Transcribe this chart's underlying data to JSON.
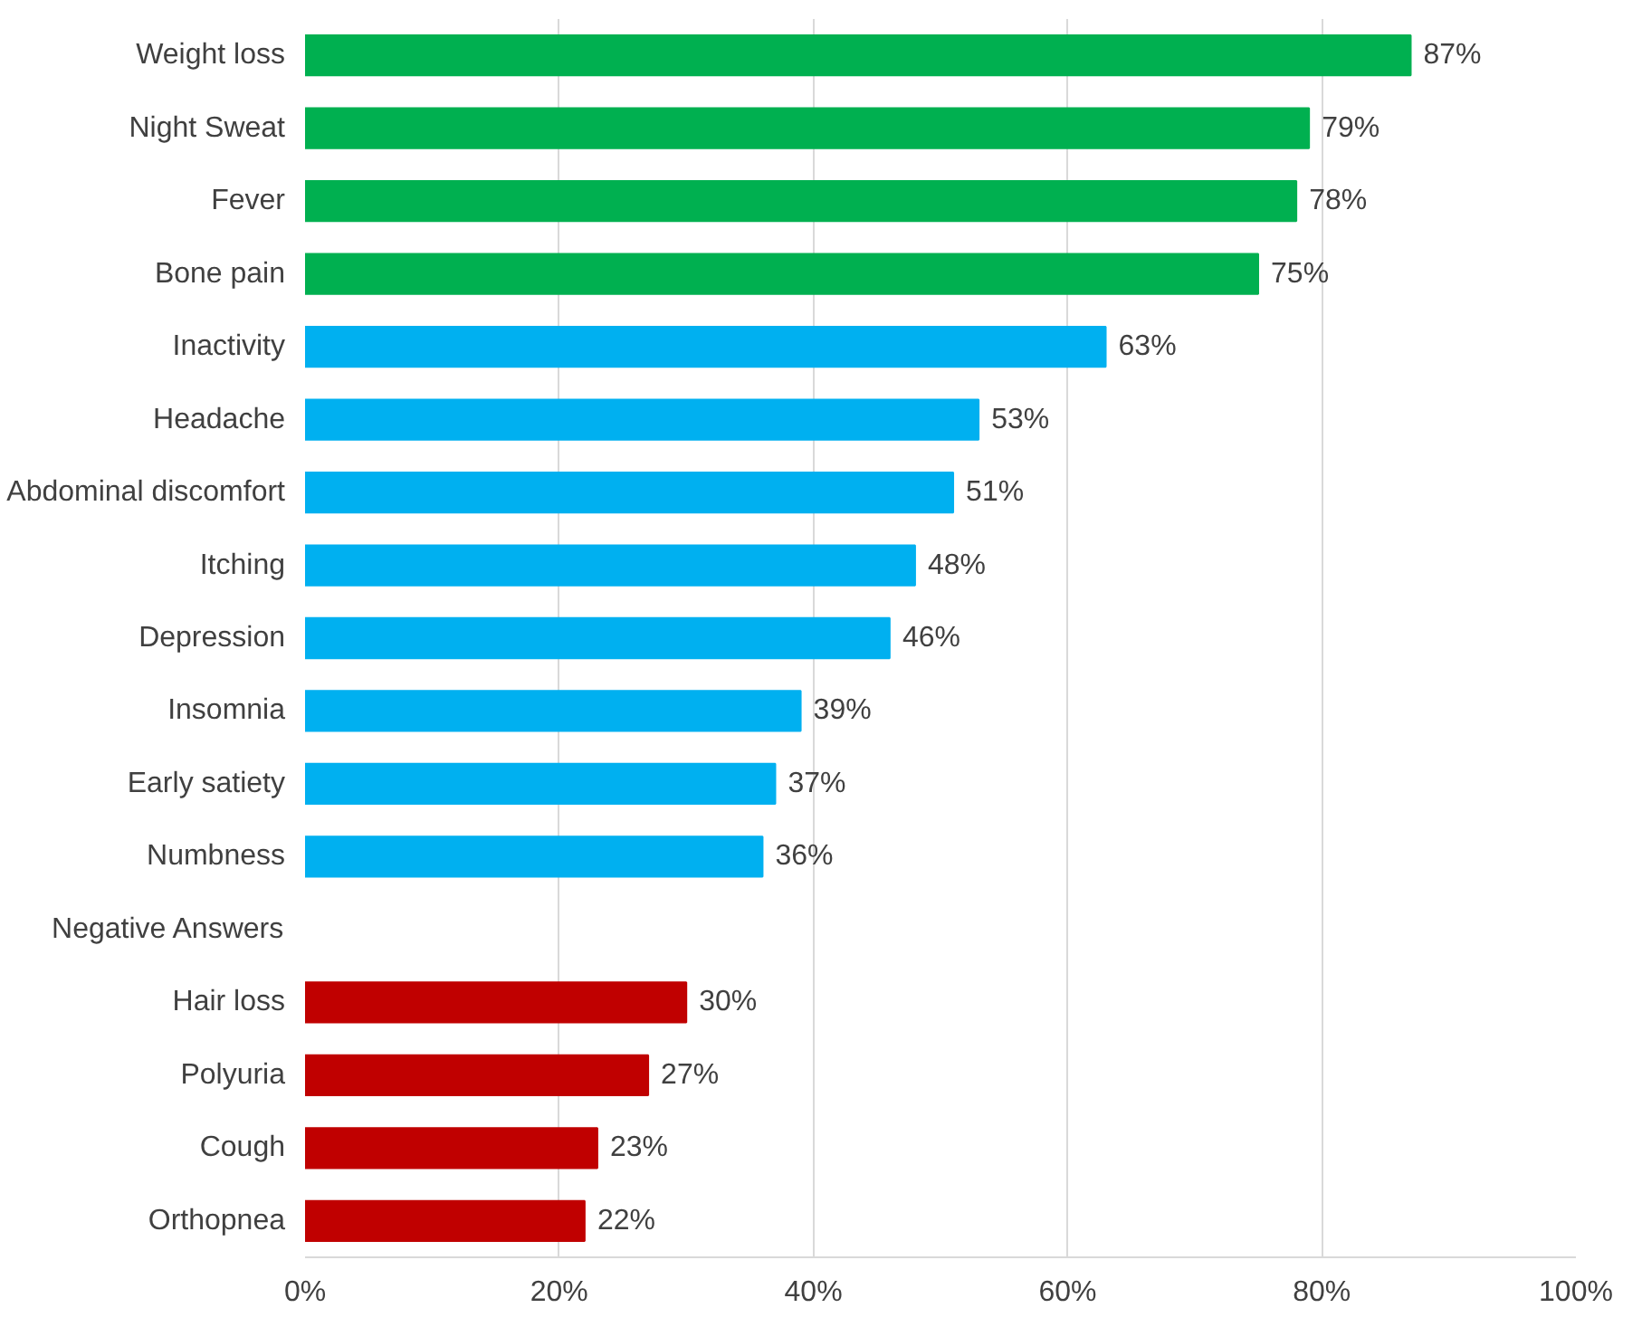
{
  "chart_data": {
    "type": "bar",
    "orientation": "horizontal",
    "categories": [
      "Weight loss",
      "Night Sweat",
      "Fever",
      "Bone pain",
      "Inactivity",
      "Headache",
      "Abdominal discomfort",
      "Itching",
      "Depression",
      "Insomnia",
      "Early satiety",
      "Numbness",
      "Negative Answers",
      "Hair loss",
      "Polyuria",
      "Cough",
      "Orthopnea"
    ],
    "values": [
      87,
      79,
      78,
      75,
      63,
      53,
      51,
      48,
      46,
      39,
      37,
      36,
      null,
      30,
      27,
      23,
      22
    ],
    "value_labels": [
      "87%",
      "79%",
      "78%",
      "75%",
      "63%",
      "53%",
      "51%",
      "48%",
      "46%",
      "39%",
      "37%",
      "36%",
      null,
      "30%",
      "27%",
      "23%",
      "22%"
    ],
    "colors": [
      "#00b050",
      "#00b050",
      "#00b050",
      "#00b050",
      "#00b0f0",
      "#00b0f0",
      "#00b0f0",
      "#00b0f0",
      "#00b0f0",
      "#00b0f0",
      "#00b0f0",
      "#00b0f0",
      "#00b0f0",
      "#c00000",
      "#c00000",
      "#c00000",
      "#c00000"
    ],
    "xlim": [
      0,
      100
    ],
    "xticks": [
      {
        "value": 0,
        "label": "0%"
      },
      {
        "value": 20,
        "label": "20%"
      },
      {
        "value": 40,
        "label": "40%"
      },
      {
        "value": 60,
        "label": "60%"
      },
      {
        "value": 80,
        "label": "80%"
      },
      {
        "value": 100,
        "label": "100%"
      }
    ],
    "grid": "x"
  }
}
